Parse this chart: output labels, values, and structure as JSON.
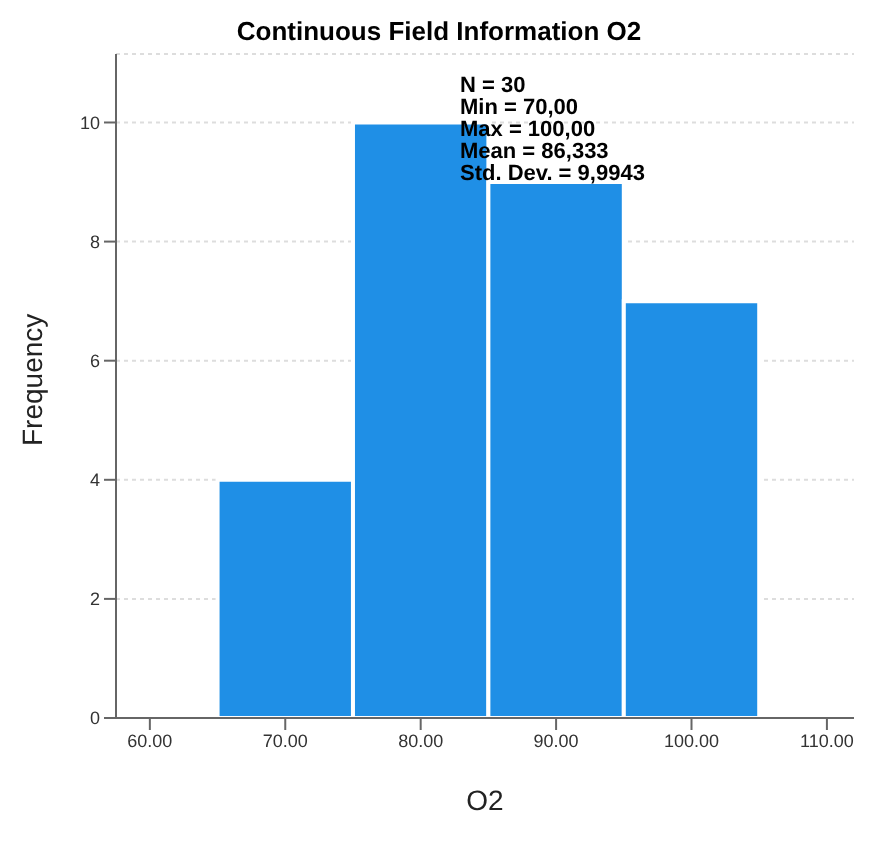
{
  "chart_data": {
    "type": "histogram",
    "title": "Continuous Field Information O2",
    "xlabel": "O2",
    "ylabel": "Frequency",
    "bins": [
      65,
      75,
      85,
      95,
      105
    ],
    "values": [
      4,
      10,
      9,
      7
    ],
    "color": "#1f8fe6",
    "xlim": [
      57.5,
      112
    ],
    "xticks": [
      {
        "value": 60,
        "label": "60.00"
      },
      {
        "value": 70,
        "label": "70.00"
      },
      {
        "value": 80,
        "label": "80.00"
      },
      {
        "value": 90,
        "label": "90.00"
      },
      {
        "value": 100,
        "label": "100.00"
      },
      {
        "value": 110,
        "label": "110.00"
      }
    ],
    "ylim": [
      0,
      11.15
    ],
    "yticks": [
      0,
      2,
      4,
      6,
      8,
      10
    ],
    "grid": "y",
    "annotations": [
      "N = 30",
      "Min = 70,00",
      "Max = 100,00",
      "Mean = 86,333",
      "Std. Dev. = 9,9943"
    ]
  }
}
